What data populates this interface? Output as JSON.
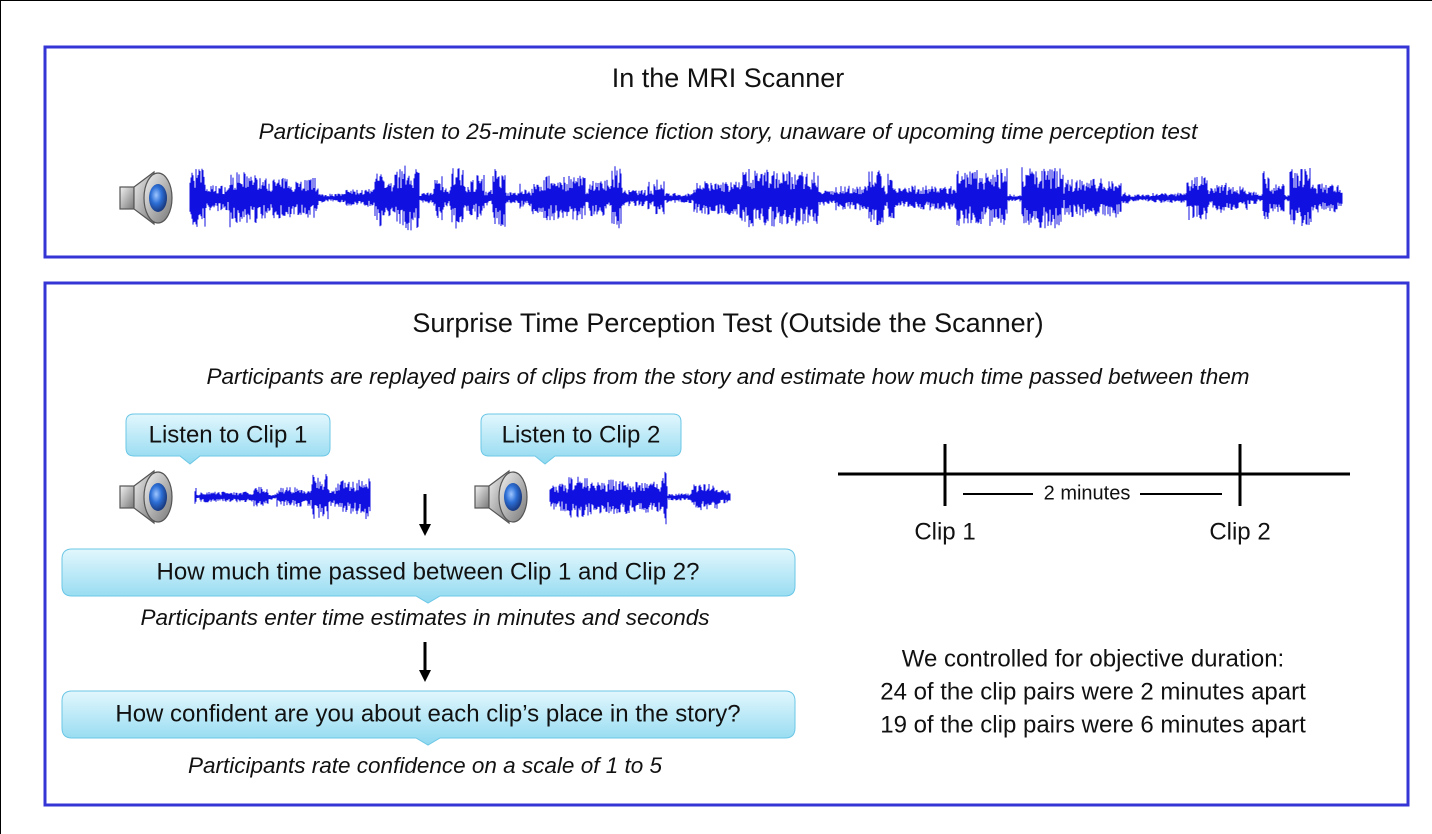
{
  "panel_1": {
    "title": "In the MRI Scanner",
    "subtitle": "Participants listen to 25-minute science fiction story, unaware of upcoming time perception test"
  },
  "panel_2": {
    "title": "Surprise Time Perception Test (Outside the Scanner)",
    "subtitle": "Participants are replayed pairs of clips from the story  and estimate how much time passed between them",
    "clip_buttons": [
      "Listen to Clip 1",
      "Listen to Clip 2"
    ],
    "question_1": "How much time passed between Clip 1 and Clip 2?",
    "note_1": "Participants enter time estimates in minutes and seconds",
    "question_2": "How confident are you about each clip’s place in the story?",
    "note_2": "Participants rate confidence on a scale of 1 to 5",
    "timeline": {
      "interval": "2 minutes",
      "start": "Clip 1",
      "end": "Clip 2"
    },
    "control_text": [
      "We controlled for objective duration:",
      "24 of the clip pairs were 2 minutes apart",
      "19 of the clip pairs were 6 minutes apart"
    ]
  }
}
